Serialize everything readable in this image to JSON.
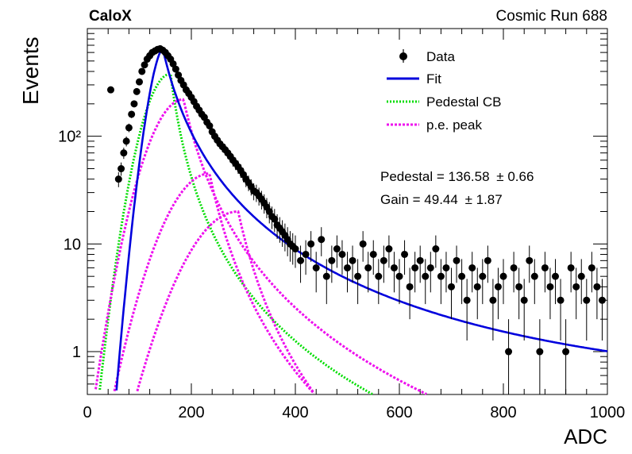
{
  "header": {
    "experiment": "CaloX",
    "run_label": "Cosmic Run 688"
  },
  "fit_results": {
    "pedestal_text": "Pedestal = 136.58",
    "pedestal_err": "± 0.66",
    "gain_text": "Gain = 49.44",
    "gain_err": "± 1.87"
  },
  "colors": {
    "data": "#000000",
    "fit": "#0000dd",
    "pedestal": "#00dd00",
    "pe_peak": "#ee11ee"
  },
  "chart_data": {
    "type": "scatter",
    "xlabel": "ADC",
    "ylabel": "Events",
    "xlim": [
      0,
      1000
    ],
    "ylim": [
      0.4,
      1000
    ],
    "log_y": true,
    "grid": false,
    "legend_placement": "top-right",
    "x_ticks": [
      "0",
      "200",
      "400",
      "600",
      "800",
      "1000"
    ],
    "y_ticks": [
      "1",
      "10",
      "10²"
    ],
    "legend": [
      {
        "label": "Data",
        "style": "marker"
      },
      {
        "label": "Fit",
        "style": "line"
      },
      {
        "label": "Pedestal CB",
        "style": "dotted-green"
      },
      {
        "label": "p.e. peak",
        "style": "dotted-magenta"
      }
    ],
    "series": [
      {
        "name": "Data",
        "x": [
          45,
          60,
          65,
          70,
          75,
          80,
          85,
          90,
          95,
          100,
          105,
          110,
          115,
          120,
          125,
          130,
          135,
          140,
          145,
          150,
          155,
          160,
          165,
          170,
          175,
          180,
          185,
          190,
          195,
          200,
          205,
          210,
          215,
          220,
          225,
          230,
          235,
          240,
          245,
          250,
          255,
          260,
          265,
          270,
          275,
          280,
          285,
          290,
          295,
          300,
          305,
          310,
          315,
          320,
          325,
          330,
          335,
          340,
          345,
          350,
          355,
          360,
          365,
          370,
          375,
          380,
          385,
          390,
          395,
          400,
          410,
          420,
          430,
          440,
          450,
          460,
          470,
          480,
          490,
          500,
          510,
          520,
          530,
          540,
          550,
          560,
          570,
          580,
          590,
          600,
          610,
          620,
          630,
          640,
          650,
          660,
          670,
          680,
          690,
          700,
          710,
          720,
          730,
          740,
          750,
          760,
          770,
          780,
          790,
          800,
          810,
          820,
          830,
          840,
          850,
          860,
          870,
          880,
          890,
          900,
          910,
          920,
          930,
          940,
          950,
          960,
          970,
          980,
          990
        ],
        "values": [
          270,
          40,
          50,
          70,
          90,
          120,
          160,
          200,
          260,
          320,
          400,
          460,
          520,
          560,
          600,
          620,
          640,
          650,
          630,
          600,
          560,
          520,
          470,
          420,
          370,
          330,
          300,
          270,
          250,
          230,
          210,
          190,
          175,
          160,
          150,
          135,
          125,
          110,
          100,
          92,
          85,
          80,
          75,
          70,
          65,
          60,
          56,
          52,
          48,
          44,
          40,
          37,
          34,
          31,
          30,
          28,
          26,
          24,
          22,
          20,
          18,
          17,
          15,
          14,
          13,
          12,
          11,
          10,
          9.5,
          9,
          7,
          8,
          10,
          6,
          11,
          5,
          7,
          9,
          8,
          6,
          7,
          5,
          10,
          6,
          8,
          5,
          7,
          9,
          6,
          5,
          8,
          4,
          6,
          7,
          5,
          6,
          9,
          5,
          6,
          4,
          7,
          5,
          3,
          6,
          4,
          5,
          7,
          3,
          4,
          5,
          1,
          6,
          4,
          3,
          7,
          5,
          1,
          6,
          4,
          5,
          3,
          1,
          6,
          4,
          5,
          3,
          6,
          4,
          3
        ]
      },
      {
        "name": "Fit",
        "values": []
      },
      {
        "name": "Pedestal CB",
        "values": []
      },
      {
        "name": "p.e. peak",
        "values": []
      }
    ]
  }
}
